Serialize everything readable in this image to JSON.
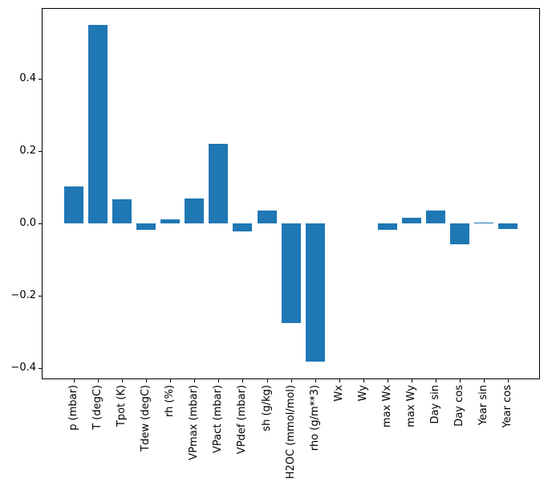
{
  "figure": {
    "background_color": "#ffffff",
    "spine_color": "#000000",
    "tick_color": "#000000",
    "label_color": "#000000"
  },
  "chart_data": {
    "type": "bar",
    "title": "",
    "xlabel": "",
    "ylabel": "",
    "grid": false,
    "legend": null,
    "bar_color": "#1f77b4",
    "bar_rel_width": 0.8,
    "xlim": [
      -1.34,
      19.34
    ],
    "ylim": [
      -0.431,
      0.596
    ],
    "categories": [
      "p (mbar)",
      "T (degC)",
      "Tpot (K)",
      "Tdew (degC)",
      "rh (%)",
      "VPmax (mbar)",
      "VPact (mbar)",
      "VPdef (mbar)",
      "sh (g/kg)",
      "H2OC (mmol/mol)",
      "rho (g/m**3)",
      "Wx",
      "Wy",
      "max Wx",
      "max Wy",
      "Day sin",
      "Day cos",
      "Year sin",
      "Year cos"
    ],
    "values": [
      0.102,
      0.55,
      0.066,
      -0.018,
      0.012,
      0.07,
      0.22,
      -0.022,
      0.036,
      -0.276,
      -0.382,
      0.0,
      0.0,
      -0.018,
      0.016,
      0.036,
      -0.058,
      0.003,
      -0.016
    ],
    "ytick_values": [
      0.4,
      0.2,
      0.0,
      -0.2,
      -0.4
    ],
    "ytick_labels": [
      "0.4",
      "0.2",
      "0.0",
      "−0.2",
      "−0.4"
    ]
  }
}
